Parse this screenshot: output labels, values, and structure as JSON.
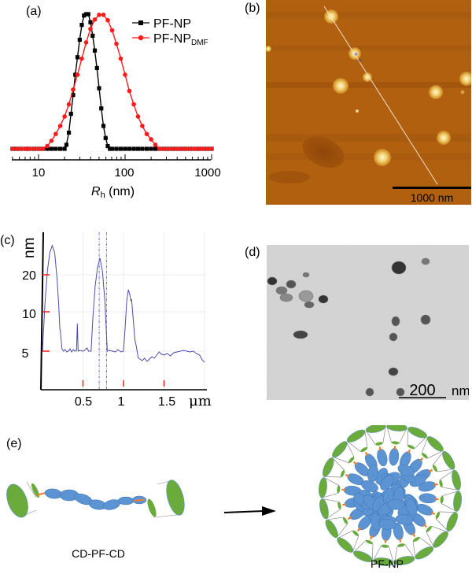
{
  "panels": {
    "a": "(a)",
    "b": "(b)",
    "c": "(c)",
    "d": "(d)",
    "e": "(e)"
  },
  "colors": {
    "pf_np": "#000000",
    "pf_np_dmf": "#ff1a1a",
    "profile": "#4b4bb0",
    "afm_bg": "#b0600f",
    "tem_bg": "#d6d6d6",
    "pf_blue": "#5b93d3",
    "cd_green": "#6aab3c",
    "linker_orange": "#f07f24"
  },
  "chart_data": [
    {
      "id": "a",
      "type": "line",
      "xscale": "log",
      "xlim": [
        5,
        1000
      ],
      "ylim": [
        0,
        1
      ],
      "xlabel_main": "R",
      "xlabel_sub": "h",
      "xlabel_unit": " (nm)",
      "xticks": [
        10,
        100,
        1000
      ],
      "xtick_labels": [
        "10",
        "100",
        "1000"
      ],
      "legend_position": "top-right",
      "series": [
        {
          "name": "PF-NP",
          "name_sub": "",
          "marker": "square",
          "color": "#000000",
          "x": [
            5,
            5.6,
            6.3,
            7.1,
            7.9,
            8.9,
            10,
            11.2,
            12.6,
            14.1,
            15.8,
            17.8,
            20,
            21,
            22.4,
            23.7,
            25.1,
            26.6,
            28.2,
            29.9,
            31.6,
            33.5,
            35.5,
            37.6,
            39.8,
            42.2,
            44.7,
            47.3,
            50.1,
            53.1,
            56.2,
            59.6,
            63.1,
            66.8,
            70.8,
            79.4,
            89.1,
            100,
            112,
            126,
            141,
            158,
            178,
            200,
            224,
            251,
            282,
            316,
            355,
            398,
            447,
            501,
            562,
            631,
            708,
            794,
            891,
            1000
          ],
          "y": [
            0,
            0,
            0,
            0,
            0,
            0,
            0,
            0,
            0,
            0,
            0,
            0,
            0,
            0.03,
            0.12,
            0.26,
            0.4,
            0.55,
            0.68,
            0.81,
            0.92,
            0.99,
            1.0,
            1.0,
            0.94,
            0.84,
            0.73,
            0.6,
            0.45,
            0.3,
            0.17,
            0.08,
            0.02,
            0,
            0,
            0,
            0,
            0,
            0,
            0,
            0,
            0,
            0,
            0,
            0,
            0,
            0,
            0,
            0,
            0,
            0,
            0,
            0,
            0,
            0,
            0,
            0,
            0
          ]
        },
        {
          "name": "PF-NP",
          "name_sub": "DMF",
          "marker": "circle",
          "color": "#ff1a1a",
          "x": [
            5,
            5.6,
            6.3,
            7.1,
            7.9,
            8.9,
            10,
            11.2,
            12.6,
            14.1,
            15.8,
            17.8,
            20,
            22.4,
            25.1,
            28.2,
            31.6,
            35.5,
            39.8,
            44.7,
            50.1,
            56.2,
            63.1,
            70.8,
            79.4,
            89.1,
            100,
            112,
            126,
            141,
            158,
            178,
            200,
            224,
            251,
            282,
            316,
            355,
            398,
            447,
            501,
            562,
            631,
            708,
            794,
            891,
            1000
          ],
          "y": [
            0,
            0,
            0,
            0,
            0,
            0,
            0,
            0,
            0.02,
            0.06,
            0.11,
            0.17,
            0.24,
            0.33,
            0.44,
            0.55,
            0.67,
            0.79,
            0.89,
            0.96,
            0.995,
            0.995,
            0.955,
            0.88,
            0.78,
            0.67,
            0.55,
            0.43,
            0.33,
            0.24,
            0.17,
            0.11,
            0.07,
            0.03,
            0,
            0,
            0,
            0,
            0,
            0,
            0,
            0,
            0,
            0,
            0,
            0,
            0
          ]
        }
      ]
    },
    {
      "id": "c",
      "type": "line",
      "ylabel": "nm",
      "xlabel": "μm",
      "xlim": [
        0,
        2
      ],
      "yticks": [
        5,
        10,
        20
      ],
      "ytick_labels": [
        "5",
        "10",
        "20"
      ],
      "xticks": [
        0.5,
        1,
        1.5
      ],
      "xtick_labels": [
        "0.5",
        "1",
        "1.5"
      ],
      "cursor_lines_x": [
        0.7,
        0.79
      ],
      "grid": true,
      "series": [
        {
          "name": "height profile",
          "color": "#4b4bb0",
          "x": [
            0,
            0.03,
            0.06,
            0.09,
            0.12,
            0.15,
            0.18,
            0.2,
            0.215,
            0.22,
            0.24,
            0.26,
            0.28,
            0.3,
            0.32,
            0.34,
            0.36,
            0.38,
            0.4,
            0.42,
            0.43,
            0.44,
            0.46,
            0.5,
            0.53,
            0.55,
            0.57,
            0.6,
            0.62,
            0.65,
            0.68,
            0.71,
            0.74,
            0.77,
            0.79,
            0.8,
            0.83,
            0.86,
            0.9,
            0.93,
            0.97,
            1.0,
            1.02,
            1.04,
            1.06,
            1.08,
            1.09,
            1.1,
            1.12,
            1.14,
            1.16,
            1.18,
            1.2,
            1.23,
            1.26,
            1.29,
            1.32,
            1.35,
            1.38,
            1.41,
            1.44,
            1.47,
            1.5,
            1.54,
            1.58,
            1.62,
            1.66,
            1.7,
            1.74,
            1.78,
            1.82,
            1.86,
            1.9,
            1.94,
            1.97,
            2.0
          ],
          "y": [
            5,
            12,
            21,
            26,
            27.9,
            26,
            19,
            12,
            7.8,
            7.6,
            5.3,
            5,
            5.2,
            4.9,
            5,
            5.3,
            4.9,
            5.2,
            5,
            5.1,
            8.5,
            5,
            5.1,
            5,
            5.2,
            5.4,
            5,
            5,
            9,
            17,
            22,
            24.5,
            21,
            13,
            7,
            5,
            5.1,
            5,
            4.9,
            5.2,
            4.9,
            5,
            8,
            13,
            16,
            14.5,
            13,
            13.3,
            9,
            6.5,
            5.5,
            4.2,
            4,
            3.8,
            4.1,
            3.7,
            4,
            4.3,
            4.1,
            4.5,
            4.9,
            4.6,
            4.5,
            4.7,
            4.4,
            4.8,
            4.9,
            5,
            5.1,
            5,
            4.9,
            5,
            4.7,
            4.5,
            3.9,
            3.6
          ]
        }
      ]
    }
  ],
  "afm": {
    "scale_bar_label": "1000 nm"
  },
  "tem": {
    "scale_bar_value": "200",
    "scale_bar_unit": "nm"
  },
  "schematic": {
    "molecule_label": "CD-PF-CD",
    "particle_label": "PF-NP"
  }
}
